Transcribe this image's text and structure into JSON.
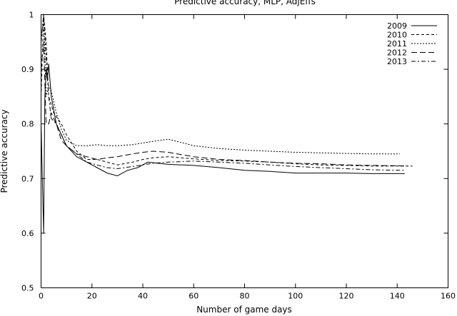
{
  "chart_data": {
    "type": "line",
    "title": "Predictive accuracy, MLP, AdjEffs",
    "xlabel": "Number of game days",
    "ylabel": "Predictive accuracy",
    "xlim": [
      0,
      160
    ],
    "ylim": [
      0.5,
      1
    ],
    "x_ticks": [
      "0",
      "20",
      "40",
      "60",
      "80",
      "100",
      "120",
      "140",
      "160"
    ],
    "y_ticks": [
      "0.5",
      "0.6",
      "0.7",
      "0.8",
      "0.9",
      "1"
    ],
    "grid": false,
    "legend_position": "top-right",
    "series": [
      {
        "name": "2009",
        "dash": "solid",
        "points": [
          [
            0,
            0.8
          ],
          [
            1,
            0.6
          ],
          [
            1.5,
            0.85
          ],
          [
            2,
            0.9
          ],
          [
            2.5,
            0.88
          ],
          [
            3,
            0.91
          ],
          [
            4,
            0.85
          ],
          [
            6,
            0.8
          ],
          [
            8,
            0.78
          ],
          [
            10,
            0.76
          ],
          [
            14,
            0.74
          ],
          [
            18,
            0.73
          ],
          [
            22,
            0.72
          ],
          [
            26,
            0.71
          ],
          [
            30,
            0.705
          ],
          [
            34,
            0.715
          ],
          [
            38,
            0.72
          ],
          [
            42,
            0.73
          ],
          [
            46,
            0.728
          ],
          [
            50,
            0.726
          ],
          [
            60,
            0.724
          ],
          [
            70,
            0.72
          ],
          [
            80,
            0.715
          ],
          [
            90,
            0.713
          ],
          [
            100,
            0.71
          ],
          [
            110,
            0.71
          ],
          [
            120,
            0.71
          ],
          [
            130,
            0.709
          ],
          [
            143,
            0.709
          ]
        ]
      },
      {
        "name": "2010",
        "dash": "medium-dash",
        "points": [
          [
            0,
            0.85
          ],
          [
            1,
            1.0
          ],
          [
            2,
            0.95
          ],
          [
            3,
            0.85
          ],
          [
            5,
            0.82
          ],
          [
            8,
            0.8
          ],
          [
            10,
            0.78
          ],
          [
            14,
            0.75
          ],
          [
            18,
            0.735
          ],
          [
            22,
            0.735
          ],
          [
            26,
            0.73
          ],
          [
            30,
            0.725
          ],
          [
            36,
            0.73
          ],
          [
            40,
            0.735
          ],
          [
            44,
            0.738
          ],
          [
            50,
            0.74
          ],
          [
            60,
            0.736
          ],
          [
            70,
            0.733
          ],
          [
            80,
            0.732
          ],
          [
            90,
            0.73
          ],
          [
            100,
            0.727
          ],
          [
            110,
            0.725
          ],
          [
            120,
            0.724
          ],
          [
            130,
            0.723
          ],
          [
            146,
            0.723
          ]
        ]
      },
      {
        "name": "2011",
        "dash": "fine-dash",
        "points": [
          [
            0,
            0.95
          ],
          [
            1,
            1.0
          ],
          [
            2,
            0.85
          ],
          [
            3,
            0.87
          ],
          [
            4,
            0.86
          ],
          [
            6,
            0.82
          ],
          [
            8,
            0.79
          ],
          [
            10,
            0.77
          ],
          [
            14,
            0.76
          ],
          [
            18,
            0.76
          ],
          [
            22,
            0.762
          ],
          [
            26,
            0.76
          ],
          [
            30,
            0.76
          ],
          [
            36,
            0.762
          ],
          [
            40,
            0.765
          ],
          [
            44,
            0.768
          ],
          [
            50,
            0.772
          ],
          [
            56,
            0.765
          ],
          [
            60,
            0.76
          ],
          [
            70,
            0.755
          ],
          [
            80,
            0.752
          ],
          [
            90,
            0.75
          ],
          [
            100,
            0.748
          ],
          [
            110,
            0.747
          ],
          [
            120,
            0.746
          ],
          [
            130,
            0.745
          ],
          [
            141,
            0.745
          ]
        ]
      },
      {
        "name": "2012",
        "dash": "long-dash",
        "points": [
          [
            0,
            0.9
          ],
          [
            1,
            0.95
          ],
          [
            2,
            0.8
          ],
          [
            3,
            0.8
          ],
          [
            4,
            0.82
          ],
          [
            6,
            0.8
          ],
          [
            8,
            0.77
          ],
          [
            10,
            0.76
          ],
          [
            14,
            0.745
          ],
          [
            18,
            0.74
          ],
          [
            22,
            0.735
          ],
          [
            26,
            0.738
          ],
          [
            30,
            0.74
          ],
          [
            36,
            0.745
          ],
          [
            40,
            0.748
          ],
          [
            44,
            0.75
          ],
          [
            50,
            0.748
          ],
          [
            60,
            0.74
          ],
          [
            70,
            0.735
          ],
          [
            80,
            0.733
          ],
          [
            90,
            0.73
          ],
          [
            100,
            0.728
          ],
          [
            110,
            0.727
          ],
          [
            120,
            0.725
          ],
          [
            130,
            0.724
          ],
          [
            144,
            0.723
          ]
        ]
      },
      {
        "name": "2013",
        "dash": "dash-dot",
        "points": [
          [
            0,
            0.95
          ],
          [
            1,
            1.0
          ],
          [
            2,
            0.92
          ],
          [
            3,
            0.85
          ],
          [
            4,
            0.81
          ],
          [
            6,
            0.8
          ],
          [
            8,
            0.78
          ],
          [
            10,
            0.76
          ],
          [
            14,
            0.745
          ],
          [
            18,
            0.73
          ],
          [
            22,
            0.725
          ],
          [
            26,
            0.72
          ],
          [
            30,
            0.718
          ],
          [
            36,
            0.722
          ],
          [
            40,
            0.725
          ],
          [
            44,
            0.728
          ],
          [
            50,
            0.73
          ],
          [
            60,
            0.732
          ],
          [
            70,
            0.73
          ],
          [
            80,
            0.728
          ],
          [
            90,
            0.725
          ],
          [
            100,
            0.722
          ],
          [
            110,
            0.72
          ],
          [
            120,
            0.718
          ],
          [
            130,
            0.716
          ],
          [
            143,
            0.715
          ]
        ]
      }
    ]
  }
}
